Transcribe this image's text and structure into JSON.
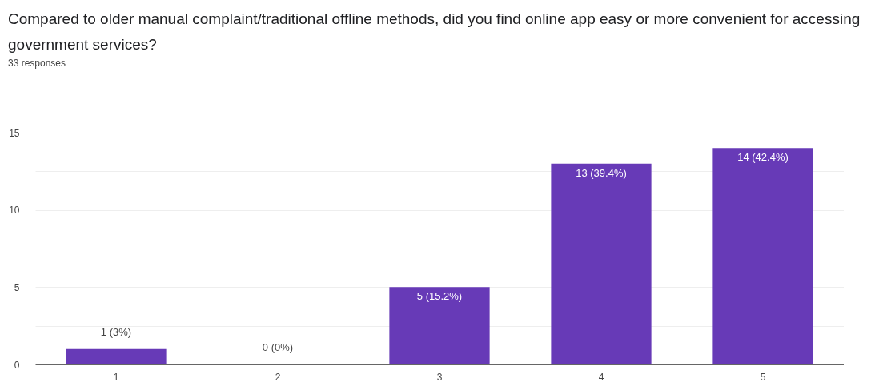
{
  "chart_data": {
    "type": "bar",
    "title": "Compared to older manual complaint/traditional offline methods, did you find online app easy or more convenient for accessing government services?",
    "subtitle": "33 responses",
    "categories": [
      "1",
      "2",
      "3",
      "4",
      "5"
    ],
    "values": [
      1,
      0,
      5,
      13,
      14
    ],
    "color": "#673ab7",
    "value_labels": [
      "1 (3%)",
      "0 (0%)",
      "5 (15.2%)",
      "13 (39.4%)",
      "14 (42.4%)"
    ],
    "ylim": [
      0,
      15
    ],
    "yticks": [
      0,
      {
        "value": 2.5,
        "label": null
      },
      5,
      {
        "value": 7.5,
        "label": null
      },
      10,
      {
        "value": 12.5,
        "label": null
      },
      15
    ],
    "grid": "y"
  }
}
